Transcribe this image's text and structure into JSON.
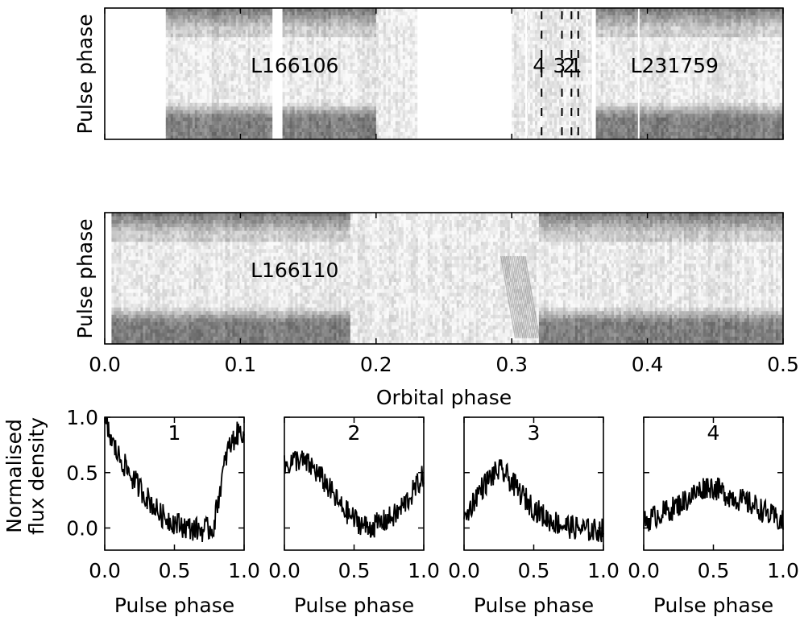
{
  "chart_data": [
    {
      "type": "heatmap",
      "ylabel": "Pulse phase",
      "xlim": [
        0,
        0.5
      ],
      "observations": [
        {
          "label": "L166106",
          "label_x": 0.14,
          "segments": [
            [
              0.045,
              0.123
            ],
            [
              0.131,
              0.2
            ],
            [
              0.2,
              0.23
            ]
          ],
          "dark_until": 0.2
        },
        {
          "label": "L231759",
          "label_x": 0.42,
          "segments": [
            [
              0.3,
              0.31
            ],
            [
              0.31,
              0.359
            ],
            [
              0.362,
              0.5
            ]
          ],
          "dark_from": 0.362
        }
      ],
      "profile_markers": [
        {
          "label": "4",
          "x": 0.322
        },
        {
          "label": "3",
          "x": 0.337
        },
        {
          "label": "2",
          "x": 0.344
        },
        {
          "label": "1",
          "x": 0.349
        }
      ]
    },
    {
      "type": "heatmap",
      "ylabel": "Pulse phase",
      "xlabel": "Orbital phase",
      "xlim": [
        0,
        0.5
      ],
      "xticks": [
        "0.0",
        "0.1",
        "0.2",
        "0.3",
        "0.4",
        "0.5"
      ],
      "observation": {
        "label": "L166110",
        "label_x": 0.14,
        "coverage": [
          0.005,
          0.5
        ],
        "eclipse": [
          0.181,
          0.32
        ]
      }
    },
    {
      "type": "line",
      "ylabel": [
        "Normalised",
        "flux density"
      ],
      "xlabel": "Pulse phase",
      "xlim": [
        0,
        1
      ],
      "ylim": [
        -0.2,
        1.0
      ],
      "xticks": [
        "0.0",
        "0.5",
        "1.0"
      ],
      "yticks": [
        "1.0",
        "0.5",
        "0.0"
      ],
      "panels": [
        {
          "title": "1",
          "x": [
            0,
            0.05,
            0.1,
            0.2,
            0.3,
            0.4,
            0.5,
            0.6,
            0.7,
            0.78,
            0.82,
            0.88,
            0.95,
            1.0
          ],
          "y": [
            0.98,
            0.78,
            0.65,
            0.45,
            0.28,
            0.12,
            0.05,
            0.0,
            -0.02,
            0.0,
            0.3,
            0.7,
            0.85,
            0.88
          ]
        },
        {
          "title": "2",
          "x": [
            0,
            0.05,
            0.1,
            0.2,
            0.3,
            0.4,
            0.5,
            0.6,
            0.7,
            0.8,
            0.9,
            1.0
          ],
          "y": [
            0.55,
            0.6,
            0.62,
            0.55,
            0.4,
            0.2,
            0.08,
            0.0,
            0.05,
            0.12,
            0.28,
            0.48
          ]
        },
        {
          "title": "3",
          "x": [
            0,
            0.05,
            0.1,
            0.2,
            0.25,
            0.3,
            0.4,
            0.5,
            0.6,
            0.7,
            0.8,
            0.9,
            1.0
          ],
          "y": [
            0.05,
            0.2,
            0.32,
            0.47,
            0.52,
            0.48,
            0.32,
            0.18,
            0.08,
            0.03,
            0.0,
            -0.02,
            -0.02
          ]
        },
        {
          "title": "4",
          "x": [
            0,
            0.1,
            0.2,
            0.3,
            0.4,
            0.45,
            0.5,
            0.6,
            0.7,
            0.8,
            0.9,
            1.0
          ],
          "y": [
            0.05,
            0.12,
            0.17,
            0.25,
            0.34,
            0.38,
            0.37,
            0.3,
            0.25,
            0.2,
            0.12,
            0.05
          ]
        }
      ]
    }
  ]
}
